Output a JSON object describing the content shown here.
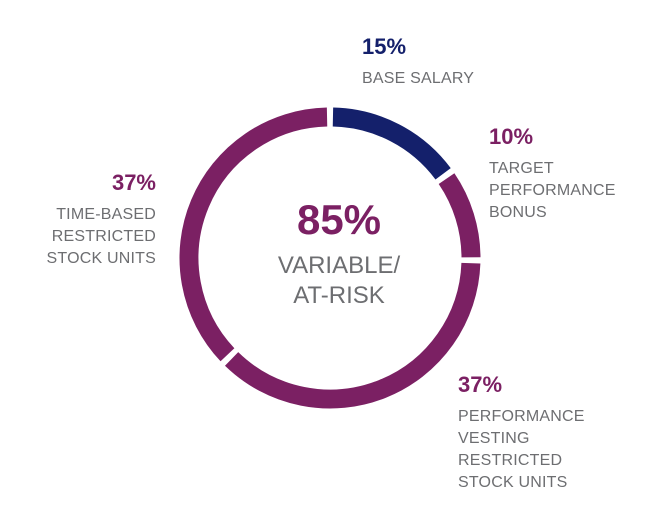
{
  "colors": {
    "navy": "#14206b",
    "purple": "#7b2063",
    "label_gray": "#6d6e71"
  },
  "chart_data": {
    "type": "pie",
    "donut": true,
    "categories": [
      "BASE SALARY",
      "TARGET PERFORMANCE BONUS",
      "PERFORMANCE VESTING RESTRICTED STOCK UNITS",
      "TIME-BASED RESTRICTED STOCK UNITS"
    ],
    "values": [
      15,
      10,
      37,
      37
    ],
    "slice_colors": [
      "#14206b",
      "#7b2063",
      "#7b2063",
      "#7b2063"
    ],
    "center": {
      "value": "85%",
      "label_lines": [
        "VARIABLE/",
        "AT-RISK"
      ]
    },
    "callouts": [
      {
        "value": "15%",
        "label_lines": [
          "BASE SALARY"
        ]
      },
      {
        "value": "10%",
        "label_lines": [
          "TARGET",
          "PERFORMANCE",
          "BONUS"
        ]
      },
      {
        "value": "37%",
        "label_lines": [
          "PERFORMANCE",
          "VESTING",
          "RESTRICTED",
          "STOCK UNITS"
        ]
      },
      {
        "value": "37%",
        "label_lines": [
          "TIME-BASED",
          "RESTRICTED",
          "STOCK UNITS"
        ]
      }
    ]
  }
}
